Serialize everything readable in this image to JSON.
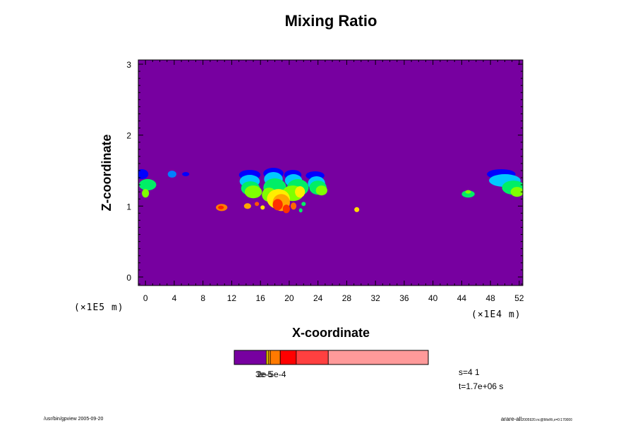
{
  "chart_data": {
    "type": "heatmap",
    "title": "Mixing Ratio",
    "xlabel": "X-coordinate",
    "ylabel": "Z-coordinate",
    "x_unit_label": "(×1E4 m)",
    "y_unit_label": "(×1E5 m)",
    "x_ticks": [
      "0",
      "4",
      "8",
      "12",
      "16",
      "20",
      "24",
      "28",
      "32",
      "36",
      "40",
      "44",
      "48",
      "52"
    ],
    "y_ticks": [
      "0",
      "1",
      "2",
      "3"
    ],
    "xlim": [
      -1,
      52.5
    ],
    "ylim": [
      -0.12,
      3.06
    ],
    "background_color": "#7700a0",
    "features": [
      {
        "x": -0.5,
        "z": 1.45,
        "rx": 0.9,
        "rz": 0.07,
        "color": "#0000ff"
      },
      {
        "x": 0.3,
        "z": 1.3,
        "rx": 1.2,
        "rz": 0.08,
        "color": "#00ee66"
      },
      {
        "x": 0.0,
        "z": 1.18,
        "rx": 0.5,
        "rz": 0.06,
        "color": "#7fff00"
      },
      {
        "x": 3.7,
        "z": 1.45,
        "rx": 0.6,
        "rz": 0.05,
        "color": "#0080ff"
      },
      {
        "x": 5.6,
        "z": 1.45,
        "rx": 0.5,
        "rz": 0.03,
        "color": "#0000ff"
      },
      {
        "x": 14.5,
        "z": 1.44,
        "rx": 1.5,
        "rz": 0.07,
        "color": "#0000ff"
      },
      {
        "x": 17.8,
        "z": 1.46,
        "rx": 1.4,
        "rz": 0.08,
        "color": "#0000ff"
      },
      {
        "x": 20.5,
        "z": 1.44,
        "rx": 1.2,
        "rz": 0.07,
        "color": "#0000ff"
      },
      {
        "x": 23.6,
        "z": 1.43,
        "rx": 1.3,
        "rz": 0.06,
        "color": "#0000ff"
      },
      {
        "x": 14.5,
        "z": 1.35,
        "rx": 1.4,
        "rz": 0.09,
        "color": "#00c8ff"
      },
      {
        "x": 17.8,
        "z": 1.38,
        "rx": 1.3,
        "rz": 0.1,
        "color": "#00c8ff"
      },
      {
        "x": 20.6,
        "z": 1.36,
        "rx": 1.2,
        "rz": 0.09,
        "color": "#00c8ff"
      },
      {
        "x": 23.8,
        "z": 1.32,
        "rx": 1.2,
        "rz": 0.1,
        "color": "#00c8ff"
      },
      {
        "x": 14.6,
        "z": 1.25,
        "rx": 1.3,
        "rz": 0.1,
        "color": "#00ee66"
      },
      {
        "x": 18.0,
        "z": 1.26,
        "rx": 1.6,
        "rz": 0.13,
        "color": "#00ee66"
      },
      {
        "x": 21.2,
        "z": 1.26,
        "rx": 1.5,
        "rz": 0.12,
        "color": "#00ee66"
      },
      {
        "x": 24.0,
        "z": 1.26,
        "rx": 1.2,
        "rz": 0.1,
        "color": "#00ee66"
      },
      {
        "x": 15.0,
        "z": 1.2,
        "rx": 1.2,
        "rz": 0.09,
        "color": "#7fff00"
      },
      {
        "x": 17.2,
        "z": 1.16,
        "rx": 1.0,
        "rz": 0.1,
        "color": "#7fff00"
      },
      {
        "x": 20.5,
        "z": 1.18,
        "rx": 1.5,
        "rz": 0.11,
        "color": "#7fff00"
      },
      {
        "x": 24.5,
        "z": 1.22,
        "rx": 0.8,
        "rz": 0.07,
        "color": "#7fff00"
      },
      {
        "x": 18.5,
        "z": 1.1,
        "rx": 1.6,
        "rz": 0.14,
        "color": "#ffee00"
      },
      {
        "x": 21.5,
        "z": 1.2,
        "rx": 0.7,
        "rz": 0.08,
        "color": "#ffee00"
      },
      {
        "x": 18.9,
        "z": 1.05,
        "rx": 1.2,
        "rz": 0.12,
        "color": "#ffa500"
      },
      {
        "x": 18.4,
        "z": 1.02,
        "rx": 0.7,
        "rz": 0.08,
        "color": "#ff3000"
      },
      {
        "x": 19.6,
        "z": 0.96,
        "rx": 0.5,
        "rz": 0.06,
        "color": "#ff3000"
      },
      {
        "x": 20.6,
        "z": 1.0,
        "rx": 0.4,
        "rz": 0.05,
        "color": "#ff6600"
      },
      {
        "x": 10.6,
        "z": 0.98,
        "rx": 0.8,
        "rz": 0.05,
        "color": "#ff7a00"
      },
      {
        "x": 10.5,
        "z": 0.98,
        "rx": 0.4,
        "rz": 0.025,
        "color": "#ff2200"
      },
      {
        "x": 14.2,
        "z": 1.0,
        "rx": 0.5,
        "rz": 0.04,
        "color": "#ffa500"
      },
      {
        "x": 15.5,
        "z": 1.03,
        "rx": 0.3,
        "rz": 0.03,
        "color": "#ff5500"
      },
      {
        "x": 16.3,
        "z": 0.98,
        "rx": 0.3,
        "rz": 0.03,
        "color": "#ffdd00"
      },
      {
        "x": 22.0,
        "z": 1.03,
        "rx": 0.3,
        "rz": 0.03,
        "color": "#00ee66"
      },
      {
        "x": 21.6,
        "z": 0.94,
        "rx": 0.25,
        "rz": 0.03,
        "color": "#00ee66"
      },
      {
        "x": 29.4,
        "z": 0.95,
        "rx": 0.35,
        "rz": 0.035,
        "color": "#ffdd00"
      },
      {
        "x": 44.9,
        "z": 1.17,
        "rx": 0.9,
        "rz": 0.05,
        "color": "#00ee66"
      },
      {
        "x": 44.9,
        "z": 1.2,
        "rx": 0.4,
        "rz": 0.025,
        "color": "#7fff00"
      },
      {
        "x": 49.5,
        "z": 1.45,
        "rx": 2.0,
        "rz": 0.07,
        "color": "#0000ff"
      },
      {
        "x": 50.0,
        "z": 1.36,
        "rx": 2.2,
        "rz": 0.09,
        "color": "#00c8ff"
      },
      {
        "x": 51.2,
        "z": 1.26,
        "rx": 1.6,
        "rz": 0.1,
        "color": "#00ee66"
      },
      {
        "x": 51.7,
        "z": 1.2,
        "rx": 0.9,
        "rz": 0.07,
        "color": "#7fff00"
      }
    ],
    "colorbar": {
      "segments": [
        {
          "color": "#7700a0",
          "weight": 16
        },
        {
          "color": "#ffdd00",
          "weight": 1
        },
        {
          "color": "#ffa500",
          "weight": 1
        },
        {
          "color": "#ff7a00",
          "weight": 5
        },
        {
          "color": "#ff0000",
          "weight": 8
        },
        {
          "color": "#ff4040",
          "weight": 16
        },
        {
          "color": "#ff9a9a",
          "weight": 50
        }
      ],
      "label_overlap": "3e-5",
      "label": "2e-5e-4"
    },
    "annotations": {
      "step": "s=4 1",
      "time": "t=1.7e+06 s",
      "footer_left": "/usr/bin/gpview 2005-09-20",
      "footer_right_main": "arare-all",
      "footer_right_sub": "2005920.nc@MixRt,x=0:170000"
    }
  }
}
